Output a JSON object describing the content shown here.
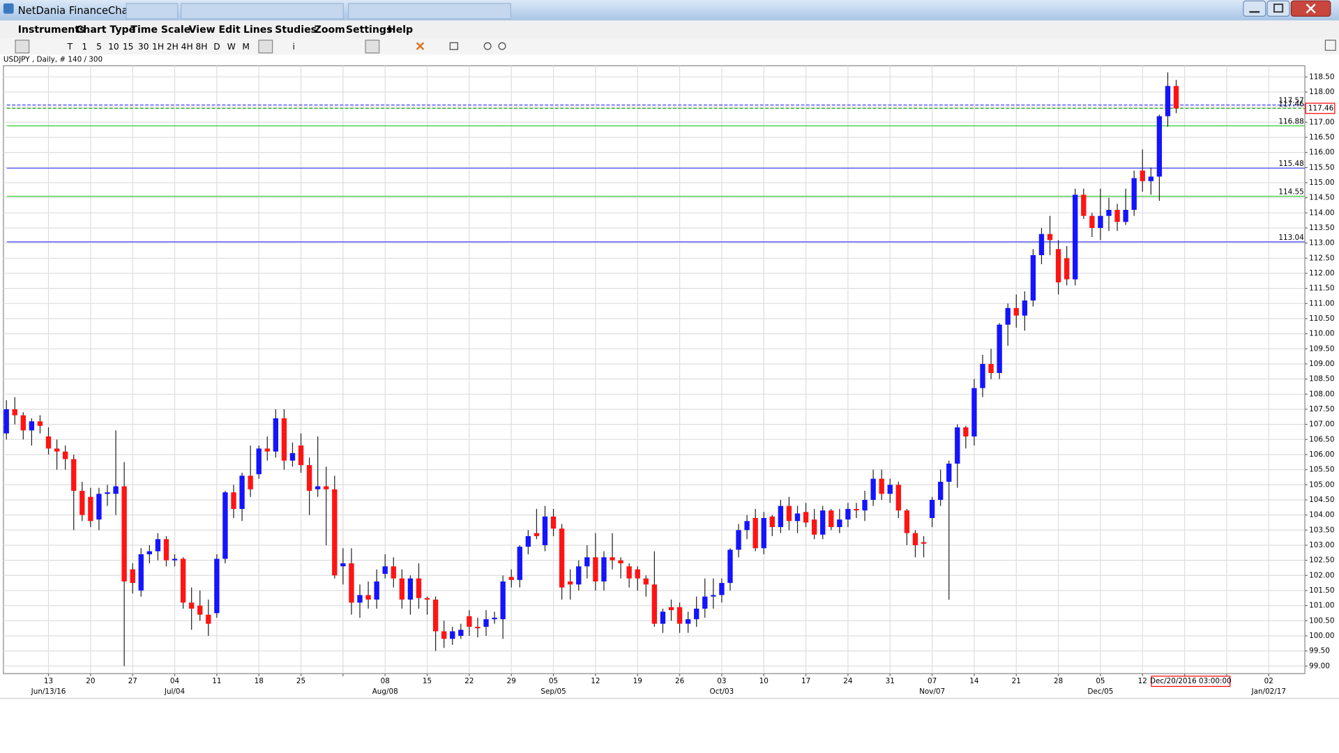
{
  "window": {
    "title": "NetDania FinanceChart"
  },
  "menu": [
    "Instruments",
    "Chart Type",
    "Time Scale",
    "View",
    "Edit",
    "Lines",
    "Studies",
    "Zoom",
    "Settings",
    "Help"
  ],
  "toolbar": [
    "T",
    "1",
    "5",
    "10",
    "15",
    "30",
    "1H",
    "2H",
    "4H",
    "8H",
    "D",
    "W",
    "M",
    "i"
  ],
  "chart_data": {
    "type": "candlestick",
    "title": "USDJPY , Daily, # 140 / 300",
    "x": [
      "2016-06-06",
      "2016-06-07",
      "2016-06-08",
      "2016-06-09",
      "2016-06-10",
      "2016-06-13",
      "2016-06-14",
      "2016-06-15",
      "2016-06-16",
      "2016-06-17",
      "2016-06-20",
      "2016-06-21",
      "2016-06-22",
      "2016-06-23",
      "2016-06-24",
      "2016-06-27",
      "2016-06-28",
      "2016-06-29",
      "2016-06-30",
      "2016-07-01",
      "2016-07-04",
      "2016-07-05",
      "2016-07-06",
      "2016-07-07",
      "2016-07-08",
      "2016-07-11",
      "2016-07-12",
      "2016-07-13",
      "2016-07-14",
      "2016-07-15",
      "2016-07-18",
      "2016-07-19",
      "2016-07-20",
      "2016-07-21",
      "2016-07-22",
      "2016-07-25",
      "2016-07-26",
      "2016-07-27",
      "2016-07-28",
      "2016-07-29",
      "2016-08-01",
      "2016-08-02",
      "2016-08-03",
      "2016-08-04",
      "2016-08-05",
      "2016-08-08",
      "2016-08-09",
      "2016-08-10",
      "2016-08-11",
      "2016-08-12",
      "2016-08-15",
      "2016-08-16",
      "2016-08-17",
      "2016-08-18",
      "2016-08-19",
      "2016-08-22",
      "2016-08-23",
      "2016-08-24",
      "2016-08-25",
      "2016-08-26",
      "2016-08-29",
      "2016-08-30",
      "2016-08-31",
      "2016-09-01",
      "2016-09-02",
      "2016-09-05",
      "2016-09-06",
      "2016-09-07",
      "2016-09-08",
      "2016-09-09",
      "2016-09-12",
      "2016-09-13",
      "2016-09-14",
      "2016-09-15",
      "2016-09-16",
      "2016-09-19",
      "2016-09-20",
      "2016-09-21",
      "2016-09-22",
      "2016-09-23",
      "2016-09-26",
      "2016-09-27",
      "2016-09-28",
      "2016-09-29",
      "2016-09-30",
      "2016-10-03",
      "2016-10-04",
      "2016-10-05",
      "2016-10-06",
      "2016-10-07",
      "2016-10-10",
      "2016-10-11",
      "2016-10-12",
      "2016-10-13",
      "2016-10-14",
      "2016-10-17",
      "2016-10-18",
      "2016-10-19",
      "2016-10-20",
      "2016-10-21",
      "2016-10-24",
      "2016-10-25",
      "2016-10-26",
      "2016-10-27",
      "2016-10-28",
      "2016-10-31",
      "2016-11-01",
      "2016-11-02",
      "2016-11-03",
      "2016-11-04",
      "2016-11-07",
      "2016-11-08",
      "2016-11-09",
      "2016-11-10",
      "2016-11-11",
      "2016-11-14",
      "2016-11-15",
      "2016-11-16",
      "2016-11-17",
      "2016-11-18",
      "2016-11-21",
      "2016-11-22",
      "2016-11-23",
      "2016-11-24",
      "2016-11-25",
      "2016-11-28",
      "2016-11-29",
      "2016-11-30",
      "2016-12-01",
      "2016-12-02",
      "2016-12-05",
      "2016-12-06",
      "2016-12-07",
      "2016-12-08",
      "2016-12-09",
      "2016-12-12",
      "2016-12-13",
      "2016-12-14",
      "2016-12-15",
      "2016-12-16"
    ],
    "ohlc": [
      [
        106.7,
        107.8,
        106.5,
        107.5
      ],
      [
        107.5,
        107.9,
        107.0,
        107.3
      ],
      [
        107.3,
        107.4,
        106.5,
        106.8
      ],
      [
        106.8,
        107.2,
        106.3,
        107.1
      ],
      [
        107.1,
        107.3,
        106.7,
        106.95
      ],
      [
        106.6,
        106.9,
        106.0,
        106.2
      ],
      [
        106.2,
        106.5,
        105.5,
        106.1
      ],
      [
        106.1,
        106.3,
        105.5,
        105.85
      ],
      [
        105.85,
        106.0,
        103.5,
        104.8
      ],
      [
        104.8,
        105.1,
        103.8,
        104.0
      ],
      [
        104.6,
        104.9,
        103.6,
        103.8
      ],
      [
        103.85,
        104.9,
        103.5,
        104.7
      ],
      [
        104.7,
        105.0,
        104.3,
        104.75
      ],
      [
        104.7,
        106.8,
        104.0,
        104.95
      ],
      [
        104.95,
        105.75,
        99.0,
        101.8
      ],
      [
        102.2,
        102.4,
        101.4,
        101.75
      ],
      [
        101.5,
        102.9,
        101.3,
        102.7
      ],
      [
        102.7,
        103.0,
        102.4,
        102.8
      ],
      [
        102.8,
        103.4,
        102.5,
        103.2
      ],
      [
        103.2,
        103.3,
        102.3,
        102.5
      ],
      [
        102.5,
        102.7,
        102.3,
        102.55
      ],
      [
        102.55,
        102.6,
        100.9,
        101.1
      ],
      [
        101.1,
        101.6,
        100.2,
        100.9
      ],
      [
        101.0,
        101.5,
        100.5,
        100.7
      ],
      [
        100.7,
        101.2,
        100.0,
        100.4
      ],
      [
        100.75,
        102.7,
        100.6,
        102.55
      ],
      [
        102.55,
        104.8,
        102.4,
        104.75
      ],
      [
        104.75,
        105.0,
        103.9,
        104.2
      ],
      [
        104.2,
        105.4,
        103.8,
        105.3
      ],
      [
        105.3,
        106.3,
        104.6,
        104.85
      ],
      [
        105.35,
        106.3,
        105.2,
        106.2
      ],
      [
        106.2,
        106.6,
        105.8,
        106.1
      ],
      [
        106.1,
        107.5,
        105.9,
        107.2
      ],
      [
        107.2,
        107.5,
        105.5,
        105.8
      ],
      [
        105.8,
        106.4,
        105.6,
        106.05
      ],
      [
        106.3,
        106.7,
        105.4,
        105.65
      ],
      [
        105.65,
        105.9,
        104.0,
        104.8
      ],
      [
        104.85,
        106.6,
        104.6,
        104.95
      ],
      [
        104.95,
        105.6,
        103.0,
        104.85
      ],
      [
        104.85,
        105.3,
        101.9,
        102.0
      ],
      [
        102.3,
        102.9,
        101.7,
        102.4
      ],
      [
        102.4,
        102.9,
        100.7,
        101.1
      ],
      [
        101.1,
        101.7,
        100.6,
        101.35
      ],
      [
        101.35,
        101.8,
        100.9,
        101.2
      ],
      [
        101.2,
        102.2,
        100.9,
        101.8
      ],
      [
        102.05,
        102.7,
        101.9,
        102.3
      ],
      [
        102.3,
        102.6,
        101.6,
        101.9
      ],
      [
        101.9,
        102.2,
        100.9,
        101.2
      ],
      [
        101.2,
        102.0,
        100.7,
        101.9
      ],
      [
        101.9,
        102.4,
        100.9,
        101.25
      ],
      [
        101.25,
        101.3,
        100.7,
        101.2
      ],
      [
        101.2,
        101.3,
        99.5,
        100.15
      ],
      [
        100.15,
        100.5,
        99.6,
        99.9
      ],
      [
        99.9,
        100.3,
        99.7,
        100.15
      ],
      [
        100.0,
        100.4,
        99.9,
        100.2
      ],
      [
        100.65,
        100.85,
        100.0,
        100.3
      ],
      [
        100.3,
        100.6,
        99.95,
        100.25
      ],
      [
        100.3,
        100.85,
        100.0,
        100.55
      ],
      [
        100.55,
        100.8,
        100.4,
        100.6
      ],
      [
        100.55,
        102.0,
        99.9,
        101.8
      ],
      [
        101.95,
        102.2,
        101.6,
        101.85
      ],
      [
        101.85,
        103.0,
        101.6,
        102.95
      ],
      [
        102.95,
        103.5,
        102.7,
        103.3
      ],
      [
        103.4,
        104.2,
        103.2,
        103.3
      ],
      [
        103.0,
        104.3,
        102.8,
        103.95
      ],
      [
        103.95,
        104.2,
        103.3,
        103.55
      ],
      [
        103.55,
        103.7,
        101.2,
        101.6
      ],
      [
        101.8,
        102.2,
        101.2,
        101.7
      ],
      [
        101.7,
        102.5,
        101.5,
        102.3
      ],
      [
        102.3,
        103.0,
        101.9,
        102.6
      ],
      [
        102.6,
        103.4,
        101.5,
        101.8
      ],
      [
        101.8,
        102.8,
        101.5,
        102.6
      ],
      [
        102.6,
        103.4,
        102.2,
        102.5
      ],
      [
        102.5,
        102.6,
        101.9,
        102.4
      ],
      [
        102.3,
        102.4,
        101.6,
        101.9
      ],
      [
        102.2,
        102.3,
        101.5,
        101.9
      ],
      [
        101.9,
        102.0,
        101.3,
        101.7
      ],
      [
        101.7,
        102.8,
        100.3,
        100.4
      ],
      [
        100.4,
        100.9,
        100.1,
        100.8
      ],
      [
        100.95,
        101.2,
        100.5,
        100.85
      ],
      [
        100.95,
        101.1,
        100.1,
        100.4
      ],
      [
        100.4,
        100.8,
        100.1,
        100.55
      ],
      [
        100.55,
        101.3,
        100.3,
        100.9
      ],
      [
        100.9,
        101.9,
        100.6,
        101.3
      ],
      [
        101.3,
        101.9,
        100.9,
        101.35
      ],
      [
        101.35,
        101.9,
        101.1,
        101.75
      ],
      [
        101.75,
        102.9,
        101.5,
        102.85
      ],
      [
        102.85,
        103.7,
        102.6,
        103.5
      ],
      [
        103.5,
        104.0,
        103.2,
        103.8
      ],
      [
        103.9,
        104.2,
        102.8,
        102.9
      ],
      [
        102.9,
        104.1,
        102.7,
        103.9
      ],
      [
        103.95,
        104.0,
        103.3,
        103.6
      ],
      [
        103.6,
        104.5,
        103.4,
        104.3
      ],
      [
        104.3,
        104.6,
        103.5,
        103.8
      ],
      [
        103.8,
        104.3,
        103.4,
        104.05
      ],
      [
        104.1,
        104.4,
        103.6,
        103.75
      ],
      [
        103.85,
        104.2,
        103.2,
        103.35
      ],
      [
        103.35,
        104.3,
        103.2,
        104.15
      ],
      [
        104.15,
        104.2,
        103.5,
        103.6
      ],
      [
        103.6,
        104.2,
        103.4,
        103.85
      ],
      [
        103.85,
        104.4,
        103.6,
        104.2
      ],
      [
        104.2,
        104.4,
        103.9,
        104.15
      ],
      [
        104.15,
        104.8,
        103.8,
        104.5
      ],
      [
        104.5,
        105.5,
        104.3,
        105.2
      ],
      [
        105.2,
        105.5,
        104.5,
        104.7
      ],
      [
        104.7,
        105.2,
        104.4,
        105.0
      ],
      [
        105.0,
        105.1,
        103.9,
        104.15
      ],
      [
        104.15,
        104.2,
        103.0,
        103.4
      ],
      [
        103.4,
        103.5,
        102.6,
        103.0
      ],
      [
        103.1,
        103.3,
        102.6,
        103.05
      ],
      [
        103.9,
        104.6,
        103.6,
        104.5
      ],
      [
        104.5,
        105.5,
        104.3,
        105.1
      ],
      [
        105.1,
        105.8,
        101.2,
        105.7
      ],
      [
        105.7,
        107.0,
        104.9,
        106.9
      ],
      [
        106.9,
        106.95,
        106.2,
        106.6
      ],
      [
        106.6,
        108.5,
        106.3,
        108.2
      ],
      [
        108.2,
        109.3,
        107.9,
        109.0
      ],
      [
        109.0,
        109.5,
        108.5,
        108.7
      ],
      [
        108.7,
        110.35,
        108.5,
        110.3
      ],
      [
        110.3,
        111.0,
        109.6,
        110.85
      ],
      [
        110.85,
        111.3,
        110.2,
        110.6
      ],
      [
        110.6,
        111.4,
        110.1,
        111.1
      ],
      [
        111.1,
        112.8,
        110.9,
        112.6
      ],
      [
        112.6,
        113.5,
        112.3,
        113.3
      ],
      [
        113.3,
        113.9,
        112.6,
        113.1
      ],
      [
        112.8,
        113.1,
        111.3,
        111.7
      ],
      [
        112.5,
        112.9,
        111.6,
        111.8
      ],
      [
        111.8,
        114.8,
        111.6,
        114.6
      ],
      [
        114.6,
        114.8,
        113.8,
        113.9
      ],
      [
        113.9,
        114.0,
        113.2,
        113.5
      ],
      [
        113.5,
        114.8,
        113.1,
        113.9
      ],
      [
        113.9,
        114.5,
        113.4,
        114.1
      ],
      [
        114.1,
        114.3,
        113.4,
        113.7
      ],
      [
        113.7,
        114.8,
        113.6,
        114.1
      ],
      [
        114.1,
        115.4,
        113.9,
        115.15
      ],
      [
        115.4,
        116.1,
        114.7,
        115.05
      ],
      [
        115.05,
        115.5,
        114.6,
        115.2
      ],
      [
        115.2,
        117.25,
        114.4,
        117.2
      ],
      [
        117.2,
        118.65,
        116.85,
        118.2
      ],
      [
        118.2,
        118.4,
        117.3,
        117.46
      ]
    ],
    "up_color": "#1414ff",
    "down_color": "#ff1414",
    "ylim": [
      98.75,
      118.87
    ],
    "yticks": [
      {
        "value": 99,
        "label": "99.00"
      },
      {
        "value": 99.5,
        "label": "99.50"
      },
      {
        "value": 100,
        "label": "100.00"
      },
      {
        "value": 100.5,
        "label": "100.50"
      },
      {
        "value": 101,
        "label": "101.00"
      },
      {
        "value": 101.5,
        "label": "101.50"
      },
      {
        "value": 102,
        "label": "102.00"
      },
      {
        "value": 102.5,
        "label": "102.50"
      },
      {
        "value": 103,
        "label": "103.00"
      },
      {
        "value": 103.5,
        "label": "103.50"
      },
      {
        "value": 104,
        "label": "104.00"
      },
      {
        "value": 104.5,
        "label": "104.50"
      },
      {
        "value": 105,
        "label": "105.00"
      },
      {
        "value": 105.5,
        "label": "105.50"
      },
      {
        "value": 106,
        "label": "106.00"
      },
      {
        "value": 106.5,
        "label": "106.50"
      },
      {
        "value": 107,
        "label": "107.00"
      },
      {
        "value": 107.5,
        "label": "107.50"
      },
      {
        "value": 108,
        "label": "108.00"
      },
      {
        "value": 108.5,
        "label": "108.50"
      },
      {
        "value": 109,
        "label": "109.00"
      },
      {
        "value": 109.5,
        "label": "109.50"
      },
      {
        "value": 110,
        "label": "110.00"
      },
      {
        "value": 110.5,
        "label": "110.50"
      },
      {
        "value": 111,
        "label": "111.00"
      },
      {
        "value": 111.5,
        "label": "111.50"
      },
      {
        "value": 112,
        "label": "112.00"
      },
      {
        "value": 112.5,
        "label": "112.50"
      },
      {
        "value": 113,
        "label": "113.00"
      },
      {
        "value": 113.5,
        "label": "113.50"
      },
      {
        "value": 114,
        "label": "114.00"
      },
      {
        "value": 114.5,
        "label": "114.50"
      },
      {
        "value": 115,
        "label": "115.00"
      },
      {
        "value": 115.5,
        "label": "115.50"
      },
      {
        "value": 116,
        "label": "116.00"
      },
      {
        "value": 116.5,
        "label": "116.50"
      },
      {
        "value": 117,
        "label": "117.00"
      },
      {
        "value": 117.5,
        "label": "117.50"
      },
      {
        "value": 118,
        "label": "118.00"
      },
      {
        "value": 118.5,
        "label": "118.50"
      }
    ],
    "xticks": [
      {
        "value": "2016-06-13",
        "label": "13",
        "sublabel": "Jun/13/16"
      },
      {
        "value": "2016-06-20",
        "label": "20"
      },
      {
        "value": "2016-06-27",
        "label": "27"
      },
      {
        "value": "2016-07-04",
        "label": "04",
        "sublabel": "Jul/04"
      },
      {
        "value": "2016-07-11",
        "label": "11"
      },
      {
        "value": "2016-07-18",
        "label": "18"
      },
      {
        "value": "2016-07-25",
        "label": "25"
      },
      {
        "value": "2016-08-01",
        "label": null
      },
      {
        "value": "2016-08-08",
        "label": "08",
        "sublabel": "Aug/08"
      },
      {
        "value": "2016-08-15",
        "label": "15"
      },
      {
        "value": "2016-08-22",
        "label": "22"
      },
      {
        "value": "2016-08-29",
        "label": "29"
      },
      {
        "value": "2016-09-05",
        "label": "05",
        "sublabel": "Sep/05"
      },
      {
        "value": "2016-09-12",
        "label": "12"
      },
      {
        "value": "2016-09-19",
        "label": "19"
      },
      {
        "value": "2016-09-26",
        "label": "26"
      },
      {
        "value": "2016-10-03",
        "label": "03",
        "sublabel": "Oct/03"
      },
      {
        "value": "2016-10-10",
        "label": "10"
      },
      {
        "value": "2016-10-17",
        "label": "17"
      },
      {
        "value": "2016-10-24",
        "label": "24"
      },
      {
        "value": "2016-10-31",
        "label": "31"
      },
      {
        "value": "2016-11-07",
        "label": "07",
        "sublabel": "Nov/07"
      },
      {
        "value": "2016-11-14",
        "label": "14"
      },
      {
        "value": "2016-11-21",
        "label": "21"
      },
      {
        "value": "2016-11-28",
        "label": "28"
      },
      {
        "value": "2016-12-05",
        "label": "05",
        "sublabel": "Dec/05"
      },
      {
        "value": "2016-12-12",
        "label": "12"
      },
      {
        "value": "2016-12-19",
        "label": null
      },
      {
        "value": "2016-12-26",
        "label": null
      },
      {
        "value": "2017-01-02",
        "label": "02",
        "sublabel": "Jan/02/17"
      }
    ],
    "grid": true,
    "levels": [
      {
        "value": 117.57,
        "color": "#3c3cff",
        "style": "dashed"
      },
      {
        "value": 117.46,
        "color": "#22aa22",
        "style": "dashed"
      },
      {
        "value": 116.88,
        "color": "#33cc33",
        "style": "solid"
      },
      {
        "value": 115.48,
        "color": "#3c3cff",
        "style": "solid"
      },
      {
        "value": 114.55,
        "color": "#33cc33",
        "style": "solid"
      },
      {
        "value": 113.04,
        "color": "#3c3cff",
        "style": "solid"
      }
    ],
    "last_price": 117.46,
    "cursor_date": "Dec/20/2016 03:00:00"
  }
}
